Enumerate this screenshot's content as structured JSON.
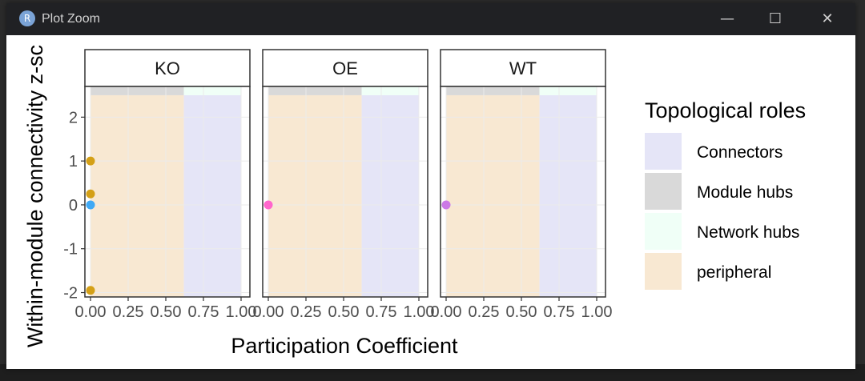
{
  "window": {
    "title": "Plot Zoom",
    "app_icon": "R",
    "minimize_icon": "—",
    "maximize_icon": "☐",
    "close_icon": "✕"
  },
  "chart_data": {
    "type": "scatter",
    "title": "",
    "xlabel": "Participation Coefficient",
    "ylabel": "Within-module connectivity z-sc",
    "xlim": [
      0,
      1
    ],
    "ylim": [
      -2.1,
      2.5
    ],
    "x_ticks": [
      0,
      0.25,
      0.5,
      0.75,
      1
    ],
    "x_tick_labels": [
      "0.00",
      "0.25",
      "0.50",
      "0.75",
      "1.00"
    ],
    "y_ticks": [
      -2,
      -1,
      0,
      1,
      2
    ],
    "y_tick_labels": [
      "-2",
      "-1",
      "0",
      "1",
      "2"
    ],
    "panels": [
      "KO",
      "OE",
      "WT"
    ],
    "regions": [
      {
        "role": "peripheral",
        "x": [
          0,
          0.62
        ],
        "y": [
          -2.1,
          2.5
        ]
      },
      {
        "role": "Connectors",
        "x": [
          0.62,
          1
        ],
        "y": [
          -2.1,
          2.5
        ]
      },
      {
        "role": "Module hubs",
        "x": [
          0,
          0.62
        ],
        "y": [
          2.5,
          2.7
        ]
      },
      {
        "role": "Network hubs",
        "x": [
          0.62,
          1
        ],
        "y": [
          2.5,
          2.7
        ]
      }
    ],
    "points": [
      {
        "panel": "KO",
        "x": 0,
        "y": 1.0,
        "color": "#D4A017"
      },
      {
        "panel": "KO",
        "x": 0,
        "y": 0.25,
        "color": "#D4A017"
      },
      {
        "panel": "KO",
        "x": 0,
        "y": 0.0,
        "color": "#3FA9F5"
      },
      {
        "panel": "KO",
        "x": 0,
        "y": -1.95,
        "color": "#D4A017"
      },
      {
        "panel": "OE",
        "x": 0,
        "y": 0.0,
        "color": "#FF66CC"
      },
      {
        "panel": "WT",
        "x": 0,
        "y": 0.0,
        "color": "#CC79E6"
      }
    ],
    "legend": {
      "title": "Topological roles",
      "position": "right",
      "items": [
        {
          "label": "Connectors",
          "color": "#E5E5F7"
        },
        {
          "label": "Module hubs",
          "color": "#D9D9D9"
        },
        {
          "label": "Network hubs",
          "color": "#F0FFF7"
        },
        {
          "label": "peripheral",
          "color": "#F8E8D2"
        }
      ]
    },
    "grid": true
  }
}
